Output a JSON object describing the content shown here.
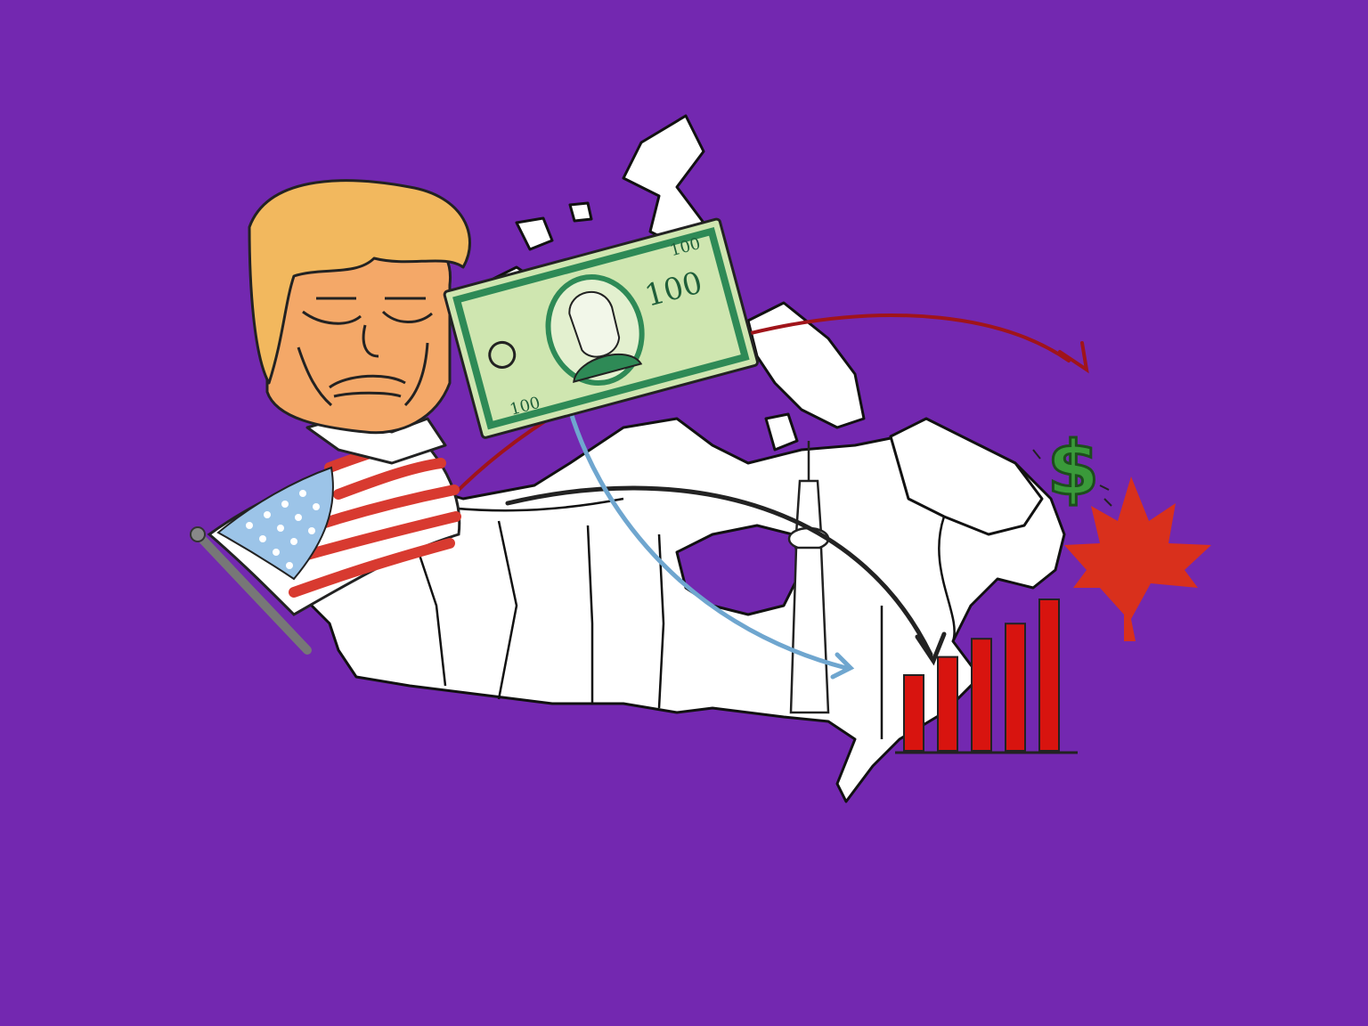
{
  "illustration": {
    "background_color": "#7328b0",
    "bill": {
      "denomination_main": "100",
      "denomination_corner": "100",
      "denomination_bottom": "100",
      "color": "#cfe6b0"
    },
    "dollar_sign": {
      "symbol": "$",
      "color": "#3a9a3a"
    },
    "colors": {
      "red_arrow": "#a0141a",
      "black_arrow": "#222222",
      "blue_arrow": "#6fa6cf",
      "bars": "#d8140f",
      "maple_leaf": "#d9301c",
      "hair": "#f2b85e",
      "face": "#f4a868"
    },
    "bar_chart": {
      "type": "bar",
      "values": [
        0.5,
        0.62,
        0.74,
        0.84,
        1.0
      ]
    }
  }
}
